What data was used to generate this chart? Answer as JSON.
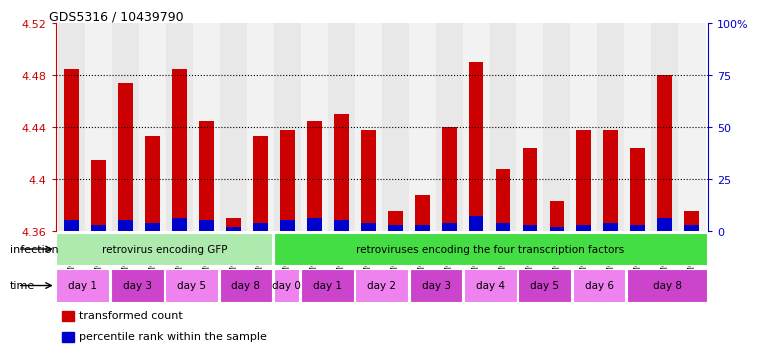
{
  "title": "GDS5316 / 10439790",
  "samples": [
    "GSM943810",
    "GSM943811",
    "GSM943812",
    "GSM943813",
    "GSM943814",
    "GSM943815",
    "GSM943816",
    "GSM943817",
    "GSM943794",
    "GSM943795",
    "GSM943796",
    "GSM943797",
    "GSM943798",
    "GSM943799",
    "GSM943800",
    "GSM943801",
    "GSM943802",
    "GSM943803",
    "GSM943804",
    "GSM943805",
    "GSM943806",
    "GSM943807",
    "GSM943808",
    "GSM943809"
  ],
  "red_values": [
    4.485,
    4.415,
    4.474,
    4.433,
    4.485,
    4.445,
    4.37,
    4.433,
    4.438,
    4.445,
    4.45,
    4.438,
    4.375,
    4.388,
    4.44,
    4.49,
    4.408,
    4.424,
    4.383,
    4.438,
    4.438,
    4.424,
    4.48,
    4.375
  ],
  "blue_percentiles": [
    5,
    3,
    5,
    4,
    6,
    5,
    2,
    4,
    5,
    6,
    5,
    4,
    3,
    3,
    4,
    7,
    4,
    3,
    2,
    3,
    4,
    3,
    6,
    3
  ],
  "y_min": 4.36,
  "y_max": 4.52,
  "y_ticks_left": [
    4.36,
    4.4,
    4.44,
    4.48,
    4.52
  ],
  "y_ticks_right": [
    0,
    25,
    50,
    75,
    100
  ],
  "y_ticks_right_labels": [
    "0",
    "25",
    "50",
    "75",
    "100%"
  ],
  "grid_lines": [
    4.4,
    4.44,
    4.48
  ],
  "infection_groups": [
    {
      "text": "retrovirus encoding GFP",
      "start": 0,
      "end": 8,
      "color": "#aeeaae"
    },
    {
      "text": "retroviruses encoding the four transcription factors",
      "start": 8,
      "end": 24,
      "color": "#44dd44"
    }
  ],
  "time_groups": [
    {
      "text": "day 1",
      "start": 0,
      "end": 2,
      "color": "#ee82ee"
    },
    {
      "text": "day 3",
      "start": 2,
      "end": 4,
      "color": "#cc44cc"
    },
    {
      "text": "day 5",
      "start": 4,
      "end": 6,
      "color": "#ee82ee"
    },
    {
      "text": "day 8",
      "start": 6,
      "end": 8,
      "color": "#cc44cc"
    },
    {
      "text": "day 0",
      "start": 8,
      "end": 9,
      "color": "#ee82ee"
    },
    {
      "text": "day 1",
      "start": 9,
      "end": 11,
      "color": "#cc44cc"
    },
    {
      "text": "day 2",
      "start": 11,
      "end": 13,
      "color": "#ee82ee"
    },
    {
      "text": "day 3",
      "start": 13,
      "end": 15,
      "color": "#cc44cc"
    },
    {
      "text": "day 4",
      "start": 15,
      "end": 17,
      "color": "#ee82ee"
    },
    {
      "text": "day 5",
      "start": 17,
      "end": 19,
      "color": "#cc44cc"
    },
    {
      "text": "day 6",
      "start": 19,
      "end": 21,
      "color": "#ee82ee"
    },
    {
      "text": "day 8",
      "start": 21,
      "end": 24,
      "color": "#cc44cc"
    }
  ],
  "legend": [
    {
      "color": "#cc0000",
      "label": "transformed count"
    },
    {
      "color": "#0000cc",
      "label": "percentile rank within the sample"
    }
  ],
  "bar_color": "#cc0000",
  "blue_bar_color": "#0000cc",
  "axis_color_left": "#cc0000",
  "axis_color_right": "#0000cc",
  "bar_width": 0.55,
  "bar_base": 4.36
}
